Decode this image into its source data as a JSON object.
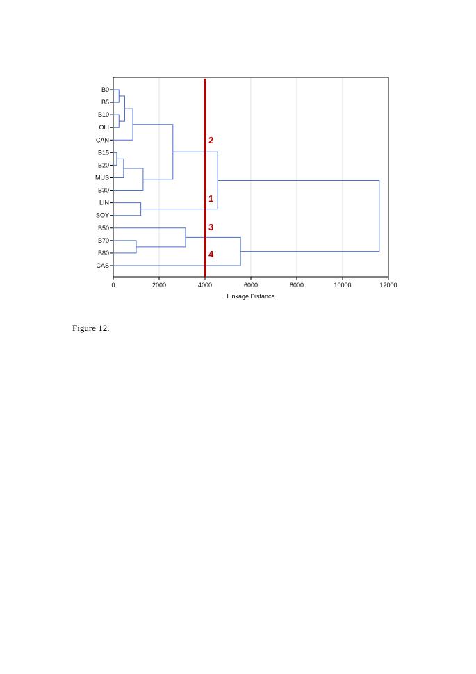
{
  "chart_data": {
    "type": "dendrogram",
    "orientation": "horizontal",
    "xlabel": "Linkage Distance",
    "xlim": [
      0,
      12000
    ],
    "xticks": [
      0,
      2000,
      4000,
      6000,
      8000,
      10000,
      12000
    ],
    "grid": true,
    "leaves": [
      "B0",
      "B5",
      "B10",
      "OLI",
      "CAN",
      "B15",
      "B20",
      "MUS",
      "B30",
      "LIN",
      "SOY",
      "B50",
      "B70",
      "B80",
      "CAS"
    ],
    "merges": [
      {
        "a": "B15",
        "b": "B20",
        "distance": 150
      },
      {
        "a": "B0",
        "b": "B5",
        "distance": 250
      },
      {
        "a": "B10",
        "b": "OLI",
        "distance": 250
      },
      {
        "a": "c1",
        "b": "c2",
        "distance": 500
      },
      {
        "a": "c0",
        "b": "MUS",
        "distance": 450
      },
      {
        "a": "c3",
        "b": "CAN",
        "distance": 850
      },
      {
        "a": "B70",
        "b": "B80",
        "distance": 1000
      },
      {
        "a": "LIN",
        "b": "SOY",
        "distance": 1200
      },
      {
        "a": "c4",
        "b": "B30",
        "distance": 1300
      },
      {
        "a": "c5",
        "b": "c8",
        "distance": 2600
      },
      {
        "a": "B50",
        "b": "c6",
        "distance": 3150
      },
      {
        "a": "c9",
        "b": "c7",
        "distance": 4550
      },
      {
        "a": "c10",
        "b": "CAS",
        "distance": 5550
      },
      {
        "a": "c11",
        "b": "c12",
        "distance": 11600
      }
    ],
    "cutoff": 4000,
    "cluster_labels": [
      "1",
      "2",
      "3",
      "4"
    ],
    "colors": {
      "tree": "#4a6fd1",
      "cutoff": "#b00000",
      "grid": "#cccccc",
      "axis": "#000000"
    }
  },
  "caption": "Figure 12."
}
